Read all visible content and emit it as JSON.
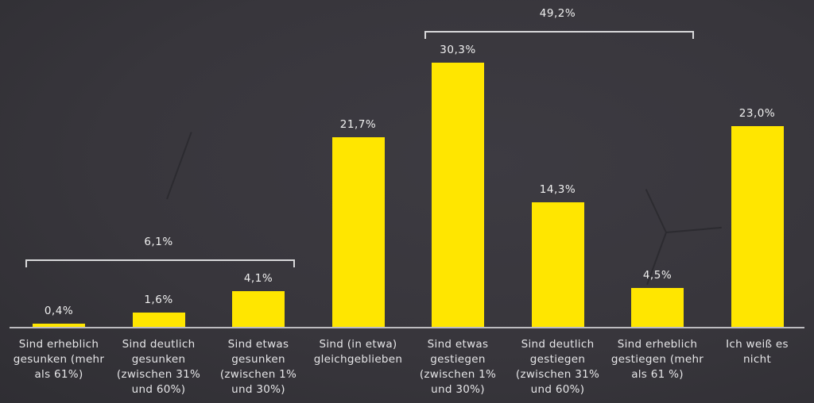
{
  "chart_data": {
    "type": "bar",
    "title": "",
    "xlabel": "",
    "ylabel": "",
    "ylim": [
      0,
      32
    ],
    "grid": false,
    "legend": null,
    "bar_color": "#ffe600",
    "background_color": "#38363c",
    "categories": [
      "Sind erheblich gesunken (mehr als 61%)",
      "Sind deutlich gesunken (zwischen 31% und 60%)",
      "Sind etwas gesunken (zwischen 1% und 30%)",
      "Sind (in etwa) gleichgeblieben",
      "Sind etwas gestiegen (zwischen 1% und 30%)",
      "Sind deutlich gestiegen (zwischen 31% und 60%)",
      "Sind erheblich gestiegen (mehr als 61 %)",
      "Ich weiß es nicht"
    ],
    "values": [
      0.4,
      1.6,
      4.1,
      21.7,
      30.3,
      14.3,
      4.5,
      23.0
    ],
    "value_labels": [
      "0,4%",
      "1,6%",
      "4,1%",
      "21,7%",
      "30,3%",
      "14,3%",
      "4,5%",
      "23,0%"
    ],
    "category_labels_wrapped": [
      "Sind erheblich\ngesunken (mehr\nals 61%)",
      "Sind deutlich\ngesunken\n(zwischen 31%\nund 60%)",
      "Sind etwas\ngesunken\n(zwischen 1%\nund 30%)",
      "Sind (in etwa)\ngleichgeblieben",
      "Sind etwas\ngestiegen\n(zwischen 1%\nund 30%)",
      "Sind deutlich\ngestiegen\n(zwischen 31%\nund 60%)",
      "Sind erheblich\ngestiegen (mehr\nals 61 %)",
      "Ich weiß es\nnicht"
    ],
    "annotations": [
      {
        "type": "bracket",
        "span": [
          0,
          2
        ],
        "label": "6,1%",
        "value": 6.1
      },
      {
        "type": "bracket",
        "span": [
          4,
          6
        ],
        "label": "49,2%",
        "value": 49.2
      }
    ]
  }
}
